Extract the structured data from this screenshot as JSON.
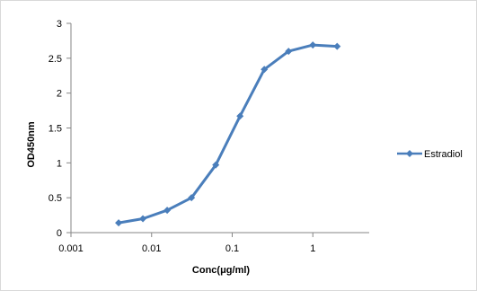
{
  "chart_data": {
    "type": "line",
    "title": "",
    "xlabel": "Conc(μg/ml)",
    "ylabel": "OD450nm",
    "x_scale": "log",
    "xlim": [
      0.001,
      5
    ],
    "ylim": [
      0,
      3
    ],
    "x_ticks": [
      0.001,
      0.01,
      0.1,
      1
    ],
    "x_tick_labels": [
      "0.001",
      "0.01",
      "0.1",
      "1"
    ],
    "y_ticks": [
      0,
      0.5,
      1,
      1.5,
      2,
      2.5,
      3
    ],
    "y_tick_labels": [
      "0",
      "0.5",
      "1",
      "1.5",
      "2",
      "2.5",
      "3"
    ],
    "grid": false,
    "legend_position": "right",
    "series": [
      {
        "name": "Estradiol",
        "color": "#4a7ebb",
        "marker": "diamond",
        "x": [
          0.0039,
          0.0078,
          0.0156,
          0.03125,
          0.0625,
          0.125,
          0.25,
          0.5,
          1,
          2
        ],
        "y": [
          0.14,
          0.2,
          0.32,
          0.5,
          0.97,
          1.67,
          2.34,
          2.6,
          2.69,
          2.67
        ]
      }
    ]
  }
}
